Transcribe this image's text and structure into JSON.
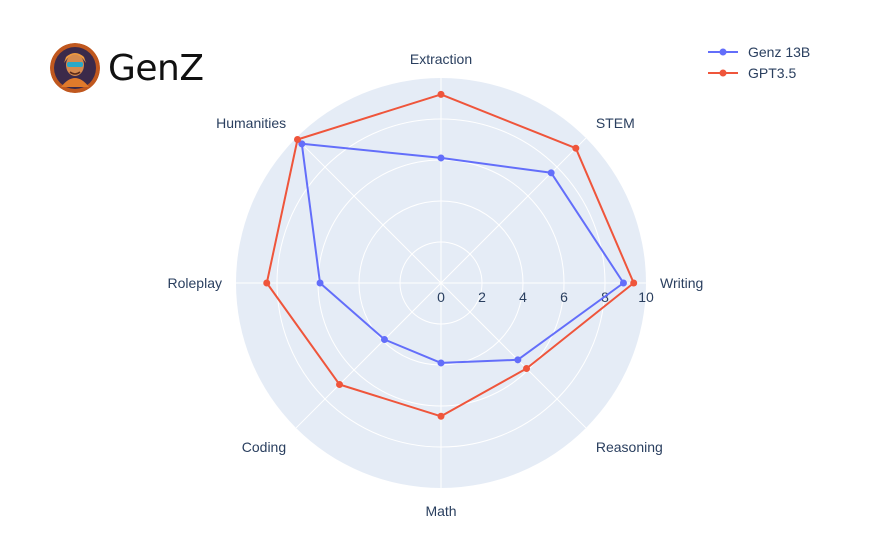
{
  "brand": {
    "name": "GenZ",
    "logo_icon": "genz-avatar-icon"
  },
  "chart_data": {
    "type": "radar",
    "categories": [
      "Writing",
      "STEM",
      "Extraction",
      "Humanities",
      "Roleplay",
      "Coding",
      "Math",
      "Reasoning"
    ],
    "radial_ticks": [
      "0",
      "2",
      "4",
      "6",
      "8",
      "10"
    ],
    "rlim": [
      0,
      10
    ],
    "grid": true,
    "legend_position": "top-right",
    "series": [
      {
        "name": "Genz 13B",
        "color": "#636efa",
        "values": [
          8.9,
          7.6,
          6.1,
          9.6,
          5.9,
          3.9,
          3.9,
          5.3
        ]
      },
      {
        "name": "GPT3.5",
        "color": "#ef553b",
        "values": [
          9.4,
          9.3,
          9.2,
          9.9,
          8.5,
          7.0,
          6.5,
          5.9
        ]
      }
    ],
    "background_color": "#e5ecf6"
  }
}
